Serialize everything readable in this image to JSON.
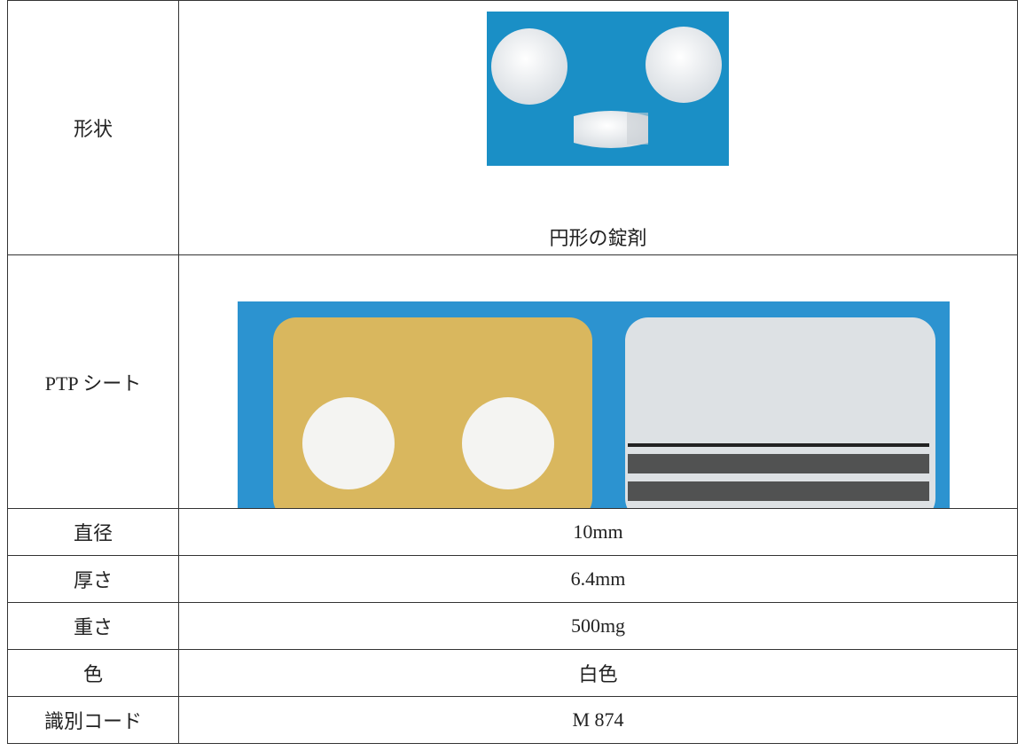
{
  "table": {
    "rows": [
      {
        "label": "形状",
        "caption": "円形の錠剤"
      },
      {
        "label": "PTP シート"
      },
      {
        "label": "直径",
        "value": "10mm"
      },
      {
        "label": "厚さ",
        "value": "6.4mm"
      },
      {
        "label": "重さ",
        "value": "500mg"
      },
      {
        "label": "色",
        "value": "白色"
      },
      {
        "label": "識別コード",
        "value": "M 874"
      }
    ]
  }
}
